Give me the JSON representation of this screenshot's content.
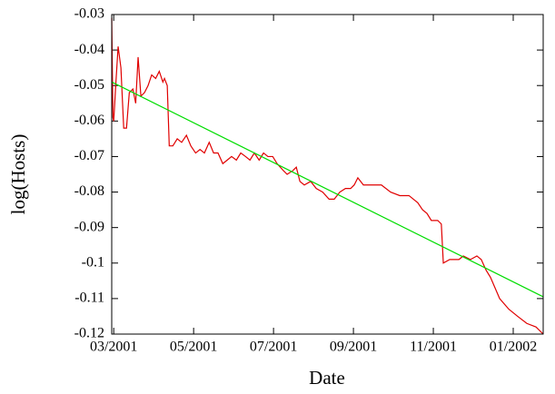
{
  "chart_data": {
    "type": "line",
    "xlabel": "Date",
    "ylabel": "log(Hosts)",
    "xlim": [
      2.95,
      13.75
    ],
    "xticks": [
      {
        "value": 3,
        "label": "03/2001"
      },
      {
        "value": 5,
        "label": "05/2001"
      },
      {
        "value": 7,
        "label": "07/2001"
      },
      {
        "value": 9,
        "label": "09/2001"
      },
      {
        "value": 11,
        "label": "11/2001"
      },
      {
        "value": 13,
        "label": "01/2002"
      }
    ],
    "ylim": [
      -0.12,
      -0.03
    ],
    "yticks": [
      -0.12,
      -0.11,
      -0.1,
      -0.09,
      -0.08,
      -0.07,
      -0.06,
      -0.05,
      -0.04,
      -0.03
    ],
    "series": [
      {
        "color": "#e00000",
        "x": [
          2.95,
          2.98,
          3,
          3.05,
          3.11,
          3.18,
          3.25,
          3.32,
          3.39,
          3.48,
          3.55,
          3.61,
          3.68,
          3.77,
          3.86,
          3.95,
          4.05,
          4.14,
          4.23,
          4.27,
          4.34,
          4.39,
          4.48,
          4.59,
          4.7,
          4.82,
          4.93,
          5.05,
          5.16,
          5.27,
          5.39,
          5.5,
          5.61,
          5.73,
          5.84,
          5.95,
          6.07,
          6.18,
          6.3,
          6.41,
          6.52,
          6.64,
          6.75,
          6.86,
          6.98,
          7.09,
          7.25,
          7.34,
          7.48,
          7.57,
          7.66,
          7.77,
          7.93,
          8.07,
          8.23,
          8.39,
          8.52,
          8.66,
          8.8,
          8.93,
          9.02,
          9.11,
          9.25,
          9.48,
          9.7,
          9.93,
          10.16,
          10.39,
          10.61,
          10.73,
          10.84,
          10.95,
          11.11,
          11.2,
          11.25,
          11.41,
          11.64,
          11.75,
          11.93,
          12.09,
          12.2,
          12.32,
          12.43,
          12.66,
          12.89,
          13.11,
          13.34,
          13.57,
          13.75
        ],
        "values": [
          -0.031,
          -0.059,
          -0.06,
          -0.05,
          -0.039,
          -0.045,
          -0.062,
          -0.062,
          -0.052,
          -0.051,
          -0.055,
          -0.042,
          -0.053,
          -0.052,
          -0.05,
          -0.047,
          -0.048,
          -0.046,
          -0.049,
          -0.048,
          -0.05,
          -0.067,
          -0.067,
          -0.065,
          -0.066,
          -0.064,
          -0.067,
          -0.069,
          -0.068,
          -0.069,
          -0.066,
          -0.069,
          -0.069,
          -0.072,
          -0.071,
          -0.07,
          -0.071,
          -0.069,
          -0.07,
          -0.071,
          -0.069,
          -0.071,
          -0.069,
          -0.07,
          -0.07,
          -0.072,
          -0.074,
          -0.075,
          -0.074,
          -0.073,
          -0.077,
          -0.078,
          -0.077,
          -0.079,
          -0.08,
          -0.082,
          -0.082,
          -0.08,
          -0.079,
          -0.079,
          -0.078,
          -0.076,
          -0.078,
          -0.078,
          -0.078,
          -0.08,
          -0.081,
          -0.081,
          -0.083,
          -0.085,
          -0.086,
          -0.088,
          -0.088,
          -0.089,
          -0.1,
          -0.099,
          -0.099,
          -0.098,
          -0.099,
          -0.098,
          -0.099,
          -0.102,
          -0.104,
          -0.11,
          -0.113,
          -0.115,
          -0.117,
          -0.118,
          -0.12
        ]
      },
      {
        "color": "#00dd00",
        "x": [
          2.95,
          13.75
        ],
        "values": [
          -0.049,
          -0.1095
        ]
      }
    ]
  }
}
